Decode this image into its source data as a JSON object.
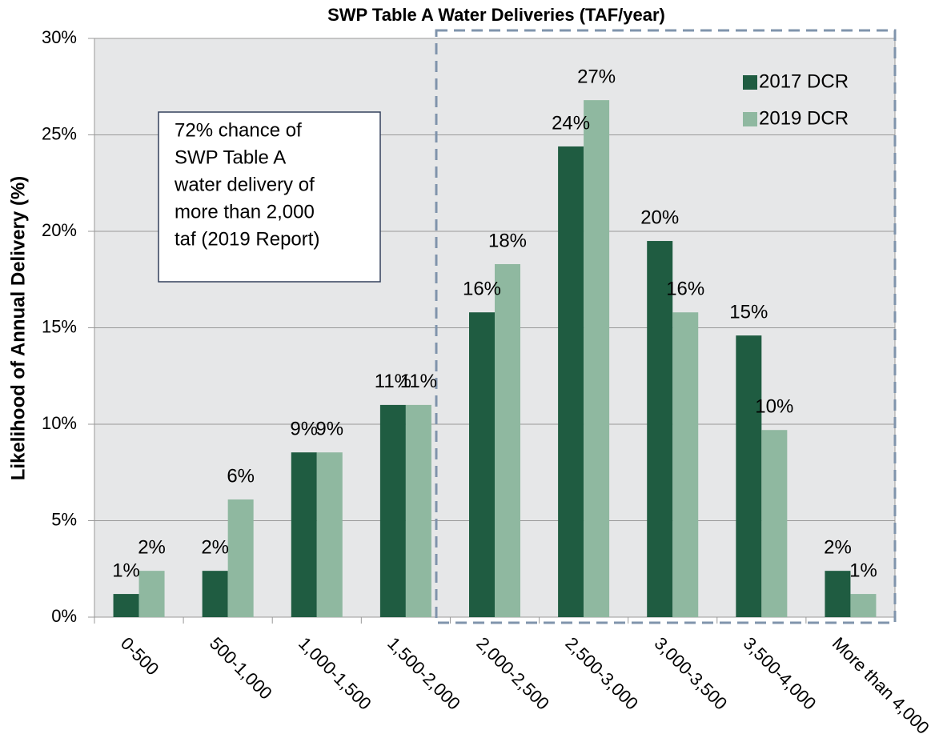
{
  "chart_data": {
    "type": "bar",
    "title": "SWP Table A Water Deliveries (TAF/year)",
    "y_label": "Likelihood of Annual Delivery (%)",
    "categories": [
      "0-500",
      "500-1,000",
      "1,000-1,500",
      "1,500-2,000",
      "2,000-2,500",
      "2,500-3,000",
      "3,000-3,500",
      "3,500-4,000",
      "More than 4,000"
    ],
    "series": [
      {
        "name": "2017 DCR",
        "color": "#1f5c41",
        "values": [
          1.2,
          2.4,
          8.54,
          11.0,
          15.8,
          24.4,
          19.5,
          14.6,
          2.4
        ],
        "value_labels": [
          "1%",
          "2%",
          "9%",
          "11%",
          "16%",
          "24%",
          "20%",
          "15%",
          "2%"
        ]
      },
      {
        "name": "2019 DCR",
        "color": "#8fb8a0",
        "values": [
          2.4,
          6.1,
          8.54,
          11.0,
          18.3,
          26.8,
          15.8,
          9.7,
          1.2
        ],
        "value_labels": [
          "2%",
          "6%",
          "9%",
          "11%",
          "18%",
          "27%",
          "16%",
          "10%",
          "1%"
        ]
      }
    ],
    "ylim": [
      0,
      30
    ],
    "yticks": [
      {
        "value": 0,
        "label": "0%"
      },
      {
        "value": 5,
        "label": "5%"
      },
      {
        "value": 10,
        "label": "10%"
      },
      {
        "value": 15,
        "label": "15%"
      },
      {
        "value": 20,
        "label": "20%"
      },
      {
        "value": 25,
        "label": "25%"
      },
      {
        "value": 30,
        "label": "30%"
      }
    ],
    "grid": true,
    "legend": "top-right",
    "annotation": [
      "72% chance of",
      "SWP Table A",
      "water delivery of",
      "more than 2,000",
      "taf (2019 Report)"
    ]
  }
}
